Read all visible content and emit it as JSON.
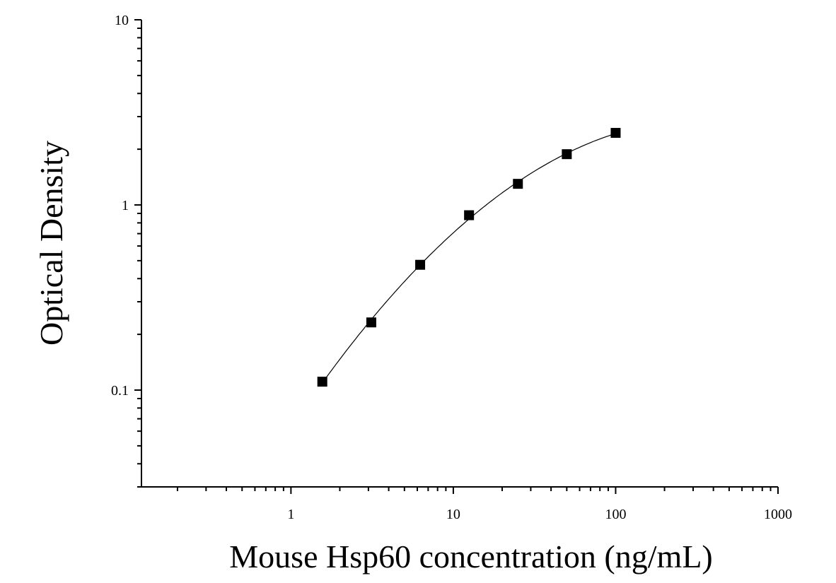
{
  "chart_data": {
    "type": "scatter",
    "title": "",
    "xlabel": "Mouse Hsp60 concentration (ng/mL)",
    "ylabel": "Optical Density",
    "x_scale": "log",
    "y_scale": "log",
    "xlim": [
      0.12,
      1000
    ],
    "ylim": [
      0.03,
      10
    ],
    "x_tick_labels": [
      "1",
      "10",
      "100",
      "1000"
    ],
    "y_tick_labels": [
      "0.1",
      "1",
      "10"
    ],
    "grid": false,
    "legend": "none",
    "series": [
      {
        "x": [
          1.56,
          3.125,
          6.25,
          12.5,
          25,
          50,
          100
        ],
        "y": [
          0.111,
          0.232,
          0.475,
          0.88,
          1.3,
          1.88,
          2.45
        ],
        "marker": "square",
        "color": "#000000",
        "fit_curve": true
      }
    ]
  }
}
